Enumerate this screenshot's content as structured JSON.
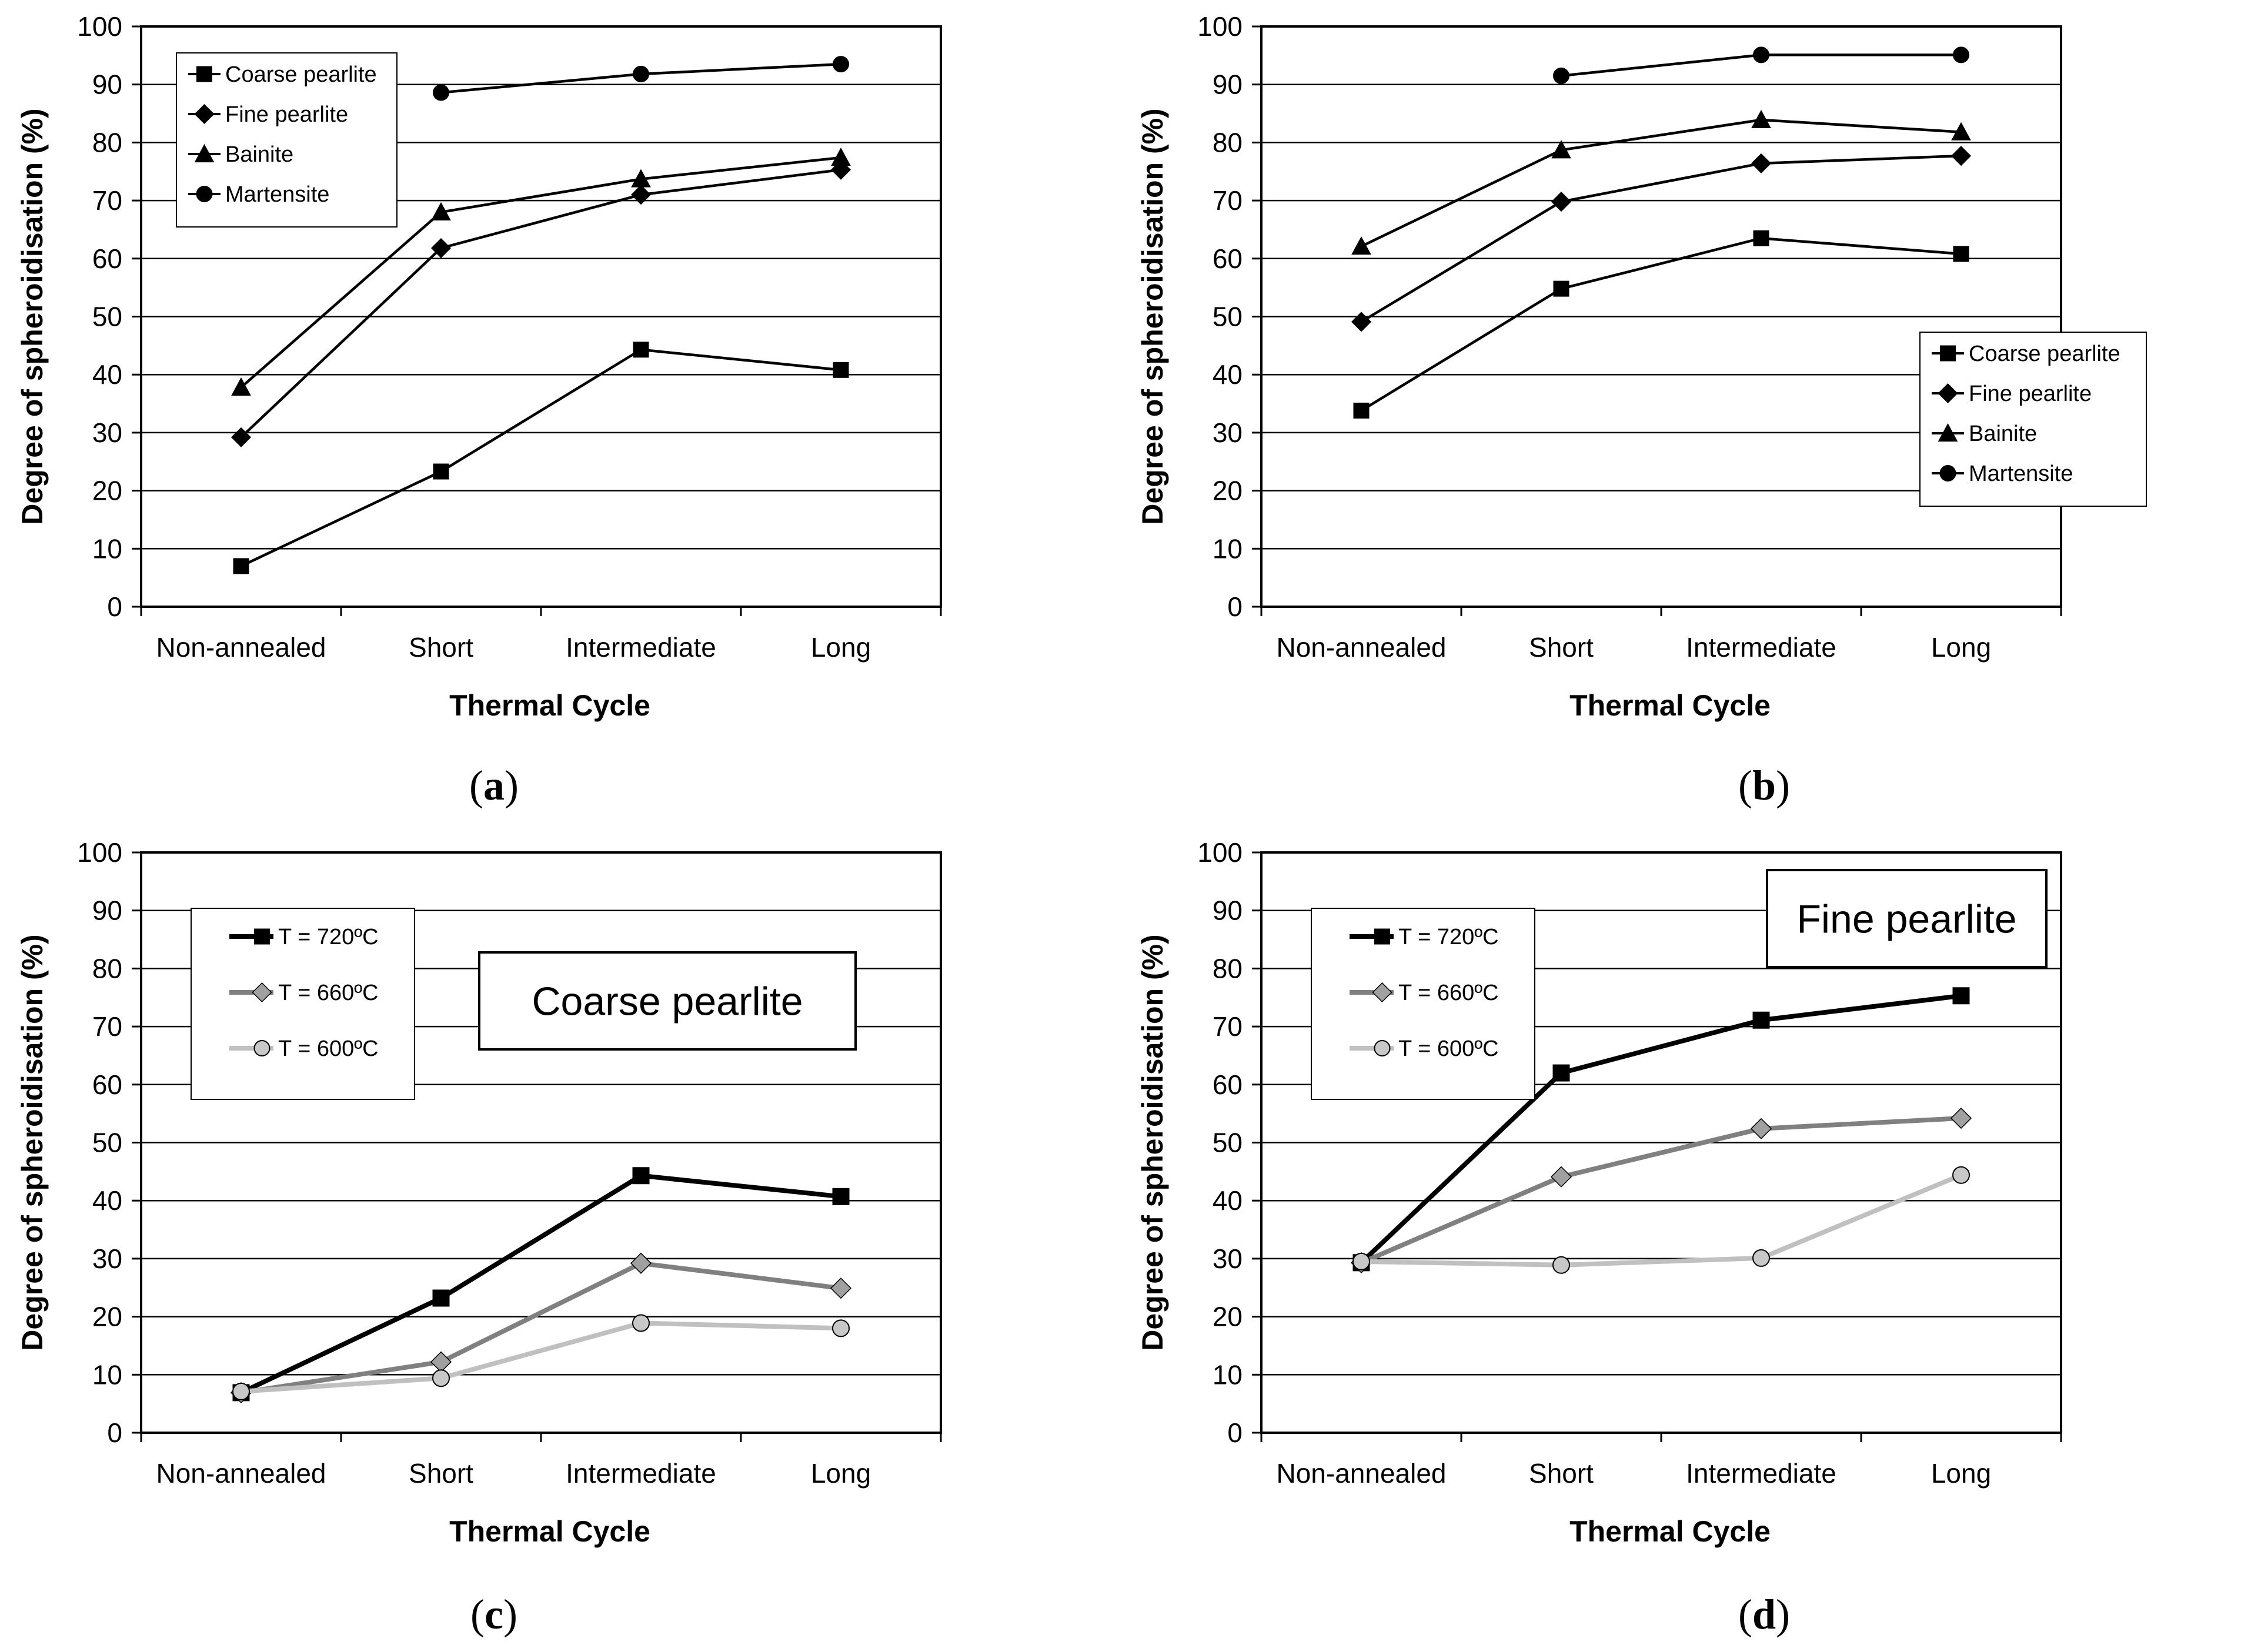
{
  "chart_data": [
    {
      "id": "a",
      "panel_label": "a",
      "type": "line",
      "categories": [
        "Non-annealed",
        "Short",
        "Intermediate",
        "Long"
      ],
      "xlabel": "Thermal Cycle",
      "ylabel": "Degree of spheroidisation (%)",
      "ylim": [
        0,
        100
      ],
      "yticks": [
        0,
        10,
        20,
        30,
        40,
        50,
        60,
        70,
        80,
        90,
        100
      ],
      "grid": true,
      "legend_position": "top-left",
      "annotation": null,
      "series": [
        {
          "name": "Coarse pearlite",
          "marker": "square",
          "color": "#000000",
          "values": [
            7,
            23.3,
            44.3,
            40.8
          ]
        },
        {
          "name": "Fine pearlite",
          "marker": "diamond",
          "color": "#000000",
          "values": [
            29.2,
            61.8,
            71,
            75.3
          ]
        },
        {
          "name": "Bainite",
          "marker": "triangle",
          "color": "#000000",
          "values": [
            37.8,
            68,
            73.7,
            77.4
          ]
        },
        {
          "name": "Martensite",
          "marker": "circle",
          "color": "#000000",
          "values": [
            null,
            88.6,
            91.8,
            93.5
          ]
        }
      ]
    },
    {
      "id": "b",
      "panel_label": "b",
      "type": "line",
      "categories": [
        "Non-annealed",
        "Short",
        "Intermediate",
        "Long"
      ],
      "xlabel": "Thermal Cycle",
      "ylabel": "Degree of spheroidisation (%)",
      "ylim": [
        0,
        100
      ],
      "yticks": [
        0,
        10,
        20,
        30,
        40,
        50,
        60,
        70,
        80,
        90,
        100
      ],
      "grid": true,
      "legend_position": "bottom-right",
      "annotation": null,
      "series": [
        {
          "name": "Coarse pearlite",
          "marker": "square",
          "color": "#000000",
          "values": [
            33.8,
            54.8,
            63.5,
            60.8
          ]
        },
        {
          "name": "Fine pearlite",
          "marker": "diamond",
          "color": "#000000",
          "values": [
            49.1,
            69.8,
            76.4,
            77.7
          ]
        },
        {
          "name": "Bainite",
          "marker": "triangle",
          "color": "#000000",
          "values": [
            62.1,
            78.7,
            83.9,
            81.8
          ]
        },
        {
          "name": "Martensite",
          "marker": "circle",
          "color": "#000000",
          "values": [
            null,
            91.5,
            95.1,
            95.1
          ]
        }
      ]
    },
    {
      "id": "c",
      "panel_label": "c",
      "type": "line",
      "categories": [
        "Non-annealed",
        "Short",
        "Intermediate",
        "Long"
      ],
      "xlabel": "Thermal Cycle",
      "ylabel": "Degree of spheroidisation (%)",
      "ylim": [
        0,
        100
      ],
      "yticks": [
        0,
        10,
        20,
        30,
        40,
        50,
        60,
        70,
        80,
        90,
        100
      ],
      "grid": true,
      "legend_position": "top-left",
      "annotation": "Coarse pearlite",
      "series": [
        {
          "name": "T = 720ºC",
          "marker": "square",
          "color": "#000000",
          "values": [
            6.9,
            23.2,
            44.3,
            40.7
          ]
        },
        {
          "name": "T = 660ºC",
          "marker": "diamond",
          "color": "#808080",
          "values": [
            6.9,
            12.2,
            29.2,
            24.9
          ]
        },
        {
          "name": "T = 600ºC",
          "marker": "circle",
          "color": "#c0c0c0",
          "values": [
            7.1,
            9.4,
            18.9,
            18
          ]
        }
      ]
    },
    {
      "id": "d",
      "panel_label": "d",
      "type": "line",
      "categories": [
        "Non-annealed",
        "Short",
        "Intermediate",
        "Long"
      ],
      "xlabel": "Thermal Cycle",
      "ylabel": "Degree of spheroidisation (%)",
      "ylim": [
        0,
        100
      ],
      "yticks": [
        0,
        10,
        20,
        30,
        40,
        50,
        60,
        70,
        80,
        90,
        100
      ],
      "grid": true,
      "legend_position": "top-left",
      "annotation": "Fine pearlite",
      "series": [
        {
          "name": "T = 720ºC",
          "marker": "square",
          "color": "#000000",
          "values": [
            29.3,
            62,
            71.1,
            75.3
          ]
        },
        {
          "name": "T = 660ºC",
          "marker": "diamond",
          "color": "#808080",
          "values": [
            29.3,
            44.1,
            52.4,
            54.2
          ]
        },
        {
          "name": "T = 600ºC",
          "marker": "circle",
          "color": "#c0c0c0",
          "values": [
            29.5,
            28.9,
            30.1,
            44.4
          ]
        }
      ]
    }
  ]
}
